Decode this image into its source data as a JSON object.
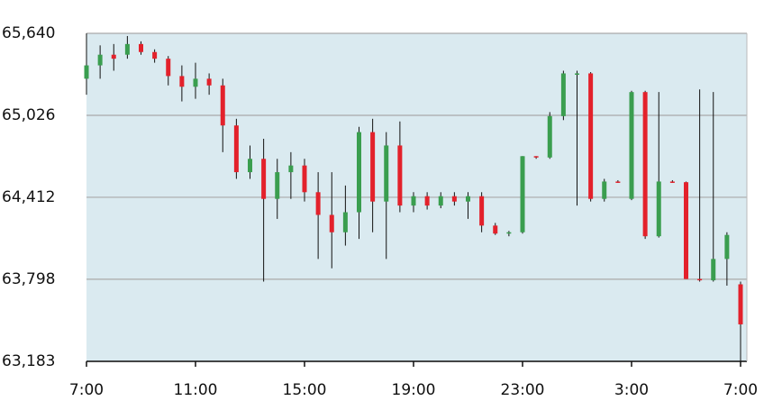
{
  "chart_data": {
    "type": "candlestick",
    "categories": [
      "7:00",
      null,
      null,
      null,
      null,
      null,
      null,
      null,
      "11:00",
      null,
      null,
      null,
      null,
      null,
      null,
      null,
      "15:00",
      null,
      null,
      null,
      null,
      null,
      null,
      null,
      "19:00",
      null,
      null,
      null,
      null,
      null,
      null,
      null,
      "23:00",
      null,
      null,
      null,
      null,
      null,
      null,
      null,
      "3:00",
      null,
      null,
      null,
      null,
      null,
      null,
      null,
      "7:00"
    ],
    "open": [
      65300,
      65400,
      65480,
      65480,
      65560,
      65500,
      65450,
      65320,
      65240,
      65300,
      65250,
      64950,
      64600,
      64700,
      64400,
      64600,
      64650,
      64450,
      64280,
      64150,
      64300,
      64900,
      64380,
      64800,
      64350,
      64420,
      64350,
      64420,
      64380,
      64420,
      64200,
      64140,
      64150,
      64720,
      64710,
      65020,
      65340,
      65340,
      64400,
      64530,
      64400,
      65200,
      64120,
      64530,
      64525,
      63800,
      63790,
      63950,
      63760
    ],
    "high": [
      65640,
      65550,
      65560,
      65620,
      65580,
      65520,
      65470,
      65400,
      65420,
      65340,
      65300,
      65000,
      64800,
      64850,
      64700,
      64750,
      64700,
      64600,
      64600,
      64500,
      64940,
      65000,
      64900,
      64980,
      64450,
      64450,
      64450,
      64450,
      64450,
      64450,
      64220,
      64160,
      64720,
      64720,
      65050,
      65360,
      65360,
      65350,
      64550,
      64540,
      65210,
      65210,
      65200,
      64540,
      64530,
      65220,
      65200,
      64150,
      63780
    ],
    "low": [
      65180,
      65300,
      65360,
      65450,
      65480,
      65420,
      65250,
      65130,
      65150,
      65180,
      64750,
      64550,
      64550,
      63780,
      64250,
      64400,
      64380,
      63950,
      63880,
      64050,
      64100,
      64150,
      63950,
      64300,
      64300,
      64320,
      64330,
      64350,
      64250,
      64150,
      64130,
      64120,
      64140,
      64700,
      64700,
      64990,
      64350,
      64380,
      64380,
      64520,
      64390,
      64100,
      64110,
      64520,
      63800,
      63780,
      63780,
      63750,
      63180
    ],
    "close": [
      65400,
      65480,
      65450,
      65560,
      65500,
      65450,
      65320,
      65240,
      65300,
      65250,
      64950,
      64600,
      64700,
      64400,
      64600,
      64650,
      64450,
      64280,
      64150,
      64300,
      64900,
      64380,
      64800,
      64350,
      64420,
      64350,
      64420,
      64380,
      64420,
      64200,
      64140,
      64150,
      64720,
      64710,
      65020,
      65340,
      65340,
      64400,
      64530,
      64525,
      65200,
      64120,
      64530,
      64525,
      63800,
      63790,
      63950,
      64130,
      63460
    ],
    "up_color": "#3a9e4f",
    "down_color": "#e3212b",
    "wick_color": "#111111",
    "background": "#daeaf0",
    "ylim": [
      63183,
      65640
    ],
    "yticks": [
      {
        "value": 63183,
        "label": "63,183"
      },
      {
        "value": 63798,
        "label": "63,798"
      },
      {
        "value": 64412,
        "label": "64,412"
      },
      {
        "value": 65026,
        "label": "65,026"
      },
      {
        "value": 65640,
        "label": "65,640"
      }
    ],
    "grid": true
  }
}
